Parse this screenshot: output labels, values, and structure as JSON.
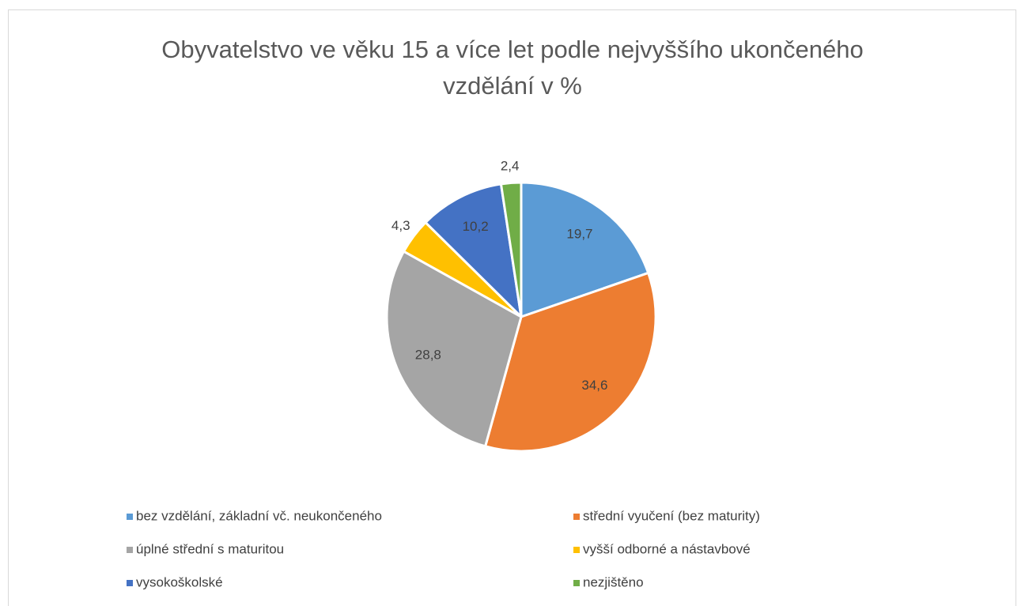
{
  "chart_data": {
    "type": "pie",
    "title": "Obyvatelstvo ve věku 15 a více let podle nejvyššího ukončeného vzdělání v %",
    "categories": [
      "bez vzdělání, základní vč. neukončeného",
      "střední vyučení (bez maturity)",
      "úplné střední s maturitou",
      "vyšší odborné a nástavbové",
      "vysokoškolské",
      "nezjištěno"
    ],
    "values": [
      19.7,
      34.6,
      28.8,
      4.3,
      10.2,
      2.4
    ],
    "value_labels": [
      "19,7",
      "34,6",
      "28,8",
      "4,3",
      "10,2",
      "2,4"
    ],
    "colors": [
      "#5b9bd5",
      "#ed7d31",
      "#a5a5a5",
      "#ffc000",
      "#4472c4",
      "#70ad47"
    ],
    "legend": "bottom"
  }
}
